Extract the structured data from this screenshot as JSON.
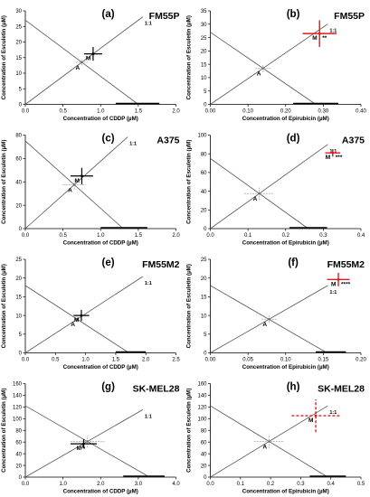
{
  "chart_data": [
    {
      "type": "isobologram",
      "panel_label": "(a)",
      "title": "FM55P",
      "xlabel": "Concentration of CDDP (µM)",
      "ylabel": "Concentration of Esculetin (µM)",
      "xlim": [
        0.0,
        2.0
      ],
      "ylim": [
        0,
        30
      ],
      "xticks": [
        "0.0",
        "0.5",
        "1.0",
        "1.5",
        "2.0"
      ],
      "yticks": [
        "0",
        "5",
        "10",
        "15",
        "20",
        "25",
        "30"
      ],
      "line_label": "1:1",
      "additivity_line": {
        "x0": 0,
        "y0": 27,
        "x1": 1.5,
        "y1": 0
      },
      "additive_point": {
        "label": "A",
        "x": 0.75,
        "y": 13.5,
        "xerr": 0.08,
        "yerr": 1.0
      },
      "mixture_point": {
        "label": "M",
        "x": 0.9,
        "y": 16.2,
        "xerr": 0.12,
        "yerr": 2.2,
        "significance": ""
      },
      "x_error_bar": [
        1.2,
        1.78
      ],
      "mixture_color": "#000000",
      "mixture_dashed": false,
      "additive_color": "#bbbbbb"
    },
    {
      "type": "isobologram",
      "panel_label": "(b)",
      "title": "FM55P",
      "xlabel": "Concentration of Epirubicin (µM)",
      "ylabel": "Concentration of Esculetin (µM)",
      "xlim": [
        0.0,
        0.4
      ],
      "ylim": [
        0,
        35
      ],
      "xticks": [
        "0.00",
        "0.10",
        "0.20",
        "0.30",
        "0.40"
      ],
      "yticks": [
        "0",
        "5",
        "10",
        "15",
        "20",
        "25",
        "30",
        "35"
      ],
      "line_label": "1:1",
      "additivity_line": {
        "x0": 0,
        "y0": 27,
        "x1": 0.28,
        "y1": 0
      },
      "additive_point": {
        "label": "A",
        "x": 0.14,
        "y": 13.5,
        "xerr": 0.02,
        "yerr": 1.5
      },
      "mixture_point": {
        "label": "M",
        "x": 0.29,
        "y": 26.5,
        "xerr": 0.045,
        "yerr": 5.0,
        "significance": "**"
      },
      "x_error_bar": [
        0.22,
        0.34
      ],
      "mixture_color": "#e01b1b",
      "mixture_dashed": false,
      "additive_color": "#bbbbbb"
    },
    {
      "type": "isobologram",
      "panel_label": "(c)",
      "title": "A375",
      "xlabel": "Concentration of CDDP (µM)",
      "ylabel": "Concentration of Esculetin (µM)",
      "xlim": [
        0.0,
        2.0
      ],
      "ylim": [
        0,
        80
      ],
      "xticks": [
        "0.0",
        "0.5",
        "1.0",
        "1.5",
        "2.0"
      ],
      "yticks": [
        "0",
        "20",
        "40",
        "60",
        "80"
      ],
      "line_label": "1:1",
      "additivity_line": {
        "x0": 0,
        "y0": 75,
        "x1": 1.3,
        "y1": 0
      },
      "additive_point": {
        "label": "A",
        "x": 0.65,
        "y": 37.5,
        "xerr": 0.15,
        "yerr": 4.0
      },
      "mixture_point": {
        "label": "M",
        "x": 0.75,
        "y": 45,
        "xerr": 0.15,
        "yerr": 7.0,
        "significance": ""
      },
      "x_error_bar": [
        1.0,
        1.62
      ],
      "mixture_color": "#000000",
      "mixture_dashed": false,
      "additive_color": "#bbbbbb"
    },
    {
      "type": "isobologram",
      "panel_label": "(d)",
      "title": "A375",
      "xlabel": "Concentration of Epirubicin (µM)",
      "ylabel": "Concentration of Esculetin (µM)",
      "xlim": [
        0.0,
        0.4
      ],
      "ylim": [
        0,
        100
      ],
      "xticks": [
        "0.0",
        "0.1",
        "0.2",
        "0.3",
        "0.4"
      ],
      "yticks": [
        "0",
        "20",
        "40",
        "60",
        "80",
        "100"
      ],
      "line_label": "1:1",
      "additivity_line": {
        "x0": 0,
        "y0": 75,
        "x1": 0.26,
        "y1": 0
      },
      "additive_point": {
        "label": "A",
        "x": 0.13,
        "y": 37.5,
        "xerr": 0.04,
        "yerr": 7.0
      },
      "mixture_point": {
        "label": "M",
        "x": 0.325,
        "y": 81,
        "xerr": 0.02,
        "yerr": 4.0,
        "significance": "***"
      },
      "x_error_bar": [
        0.21,
        0.31
      ],
      "mixture_color": "#e01b1b",
      "mixture_dashed": false,
      "additive_color": "#bbbbbb"
    },
    {
      "type": "isobologram",
      "panel_label": "(e)",
      "title": "FM55M2",
      "xlabel": "Concentration of CDDP (µM)",
      "ylabel": "Concentration of Esculetin (µM)",
      "xlim": [
        0.0,
        2.5
      ],
      "ylim": [
        0,
        25
      ],
      "xticks": [
        "0.0",
        "0.5",
        "1.0",
        "1.5",
        "2.0",
        "2.5"
      ],
      "yticks": [
        "0",
        "5",
        "10",
        "15",
        "20",
        "25"
      ],
      "line_label": "1:1",
      "additivity_line": {
        "x0": 0,
        "y0": 18,
        "x1": 1.72,
        "y1": 0
      },
      "additive_point": {
        "label": "A",
        "x": 0.86,
        "y": 9,
        "xerr": 0.05,
        "yerr": 0.8
      },
      "mixture_point": {
        "label": "M",
        "x": 0.93,
        "y": 10,
        "xerr": 0.13,
        "yerr": 1.5,
        "significance": ""
      },
      "x_error_bar": [
        1.5,
        2.0
      ],
      "mixture_color": "#000000",
      "mixture_dashed": false,
      "additive_color": "#bbbbbb"
    },
    {
      "type": "isobologram",
      "panel_label": "(f)",
      "title": "FM55M2",
      "xlabel": "Concentration of Epirubicin (µM)",
      "ylabel": "Concentration of Esculetin (µM)",
      "xlim": [
        0.0,
        0.2
      ],
      "ylim": [
        0,
        25
      ],
      "xticks": [
        "0.00",
        "0.05",
        "0.10",
        "0.15",
        "0.20"
      ],
      "yticks": [
        "0",
        "5",
        "10",
        "15",
        "20",
        "25"
      ],
      "line_label": "1:1",
      "additivity_line": {
        "x0": 0,
        "y0": 18,
        "x1": 0.155,
        "y1": 0
      },
      "additive_point": {
        "label": "A",
        "x": 0.078,
        "y": 9,
        "xerr": 0.01,
        "yerr": 1.0
      },
      "mixture_point": {
        "label": "M",
        "x": 0.17,
        "y": 19.6,
        "xerr": 0.015,
        "yerr": 1.8,
        "significance": "****"
      },
      "x_error_bar": [
        0.14,
        0.18
      ],
      "mixture_color": "#e01b1b",
      "mixture_dashed": false,
      "additive_color": "#bbbbbb"
    },
    {
      "type": "isobologram",
      "panel_label": "(g)",
      "title": "SK-MEL28",
      "xlabel": "Concentration of CDDP (µM)",
      "ylabel": "Concentration of Esculetin (µM)",
      "xlim": [
        0.0,
        4.0
      ],
      "ylim": [
        0,
        160
      ],
      "xticks": [
        "0.0",
        "1.0",
        "2.0",
        "3.0",
        "4.0"
      ],
      "yticks": [
        "0",
        "20",
        "40",
        "60",
        "80",
        "100",
        "120",
        "140",
        "160"
      ],
      "line_label": "1:1",
      "additivity_line": {
        "x0": 0,
        "y0": 122,
        "x1": 3.3,
        "y1": 0
      },
      "additive_point": {
        "label": "A",
        "x": 1.65,
        "y": 61,
        "xerr": 0.45,
        "yerr": 10.0
      },
      "mixture_point": {
        "label": "M",
        "x": 1.55,
        "y": 57,
        "xerr": 0.35,
        "yerr": 8.0,
        "significance": ""
      },
      "x_error_bar": [
        2.6,
        3.7
      ],
      "mixture_color": "#000000",
      "mixture_dashed": false,
      "additive_color": "#bbbbbb"
    },
    {
      "type": "isobologram",
      "panel_label": "(h)",
      "title": "SK-MEL28",
      "xlabel": "Concentration of Epirubicin (µM)",
      "ylabel": "Concentration of Esculetin (µM)",
      "xlim": [
        0.0,
        0.5
      ],
      "ylim": [
        0,
        160
      ],
      "xticks": [
        "0.0",
        "0.1",
        "0.2",
        "0.3",
        "0.4",
        "0.5"
      ],
      "yticks": [
        "0",
        "20",
        "40",
        "60",
        "80",
        "100",
        "120",
        "140",
        "160"
      ],
      "line_label": "1:1",
      "additivity_line": {
        "x0": 0,
        "y0": 122,
        "x1": 0.39,
        "y1": 0
      },
      "additive_point": {
        "label": "A",
        "x": 0.195,
        "y": 61,
        "xerr": 0.05,
        "yerr": 12.0
      },
      "mixture_point": {
        "label": "M",
        "x": 0.35,
        "y": 105,
        "xerr": 0.08,
        "yerr": 28.0,
        "significance": ""
      },
      "x_error_bar": [
        0.33,
        0.45
      ],
      "mixture_color": "#e01b1b",
      "mixture_dashed": true,
      "additive_color": "#bbbbbb"
    }
  ]
}
